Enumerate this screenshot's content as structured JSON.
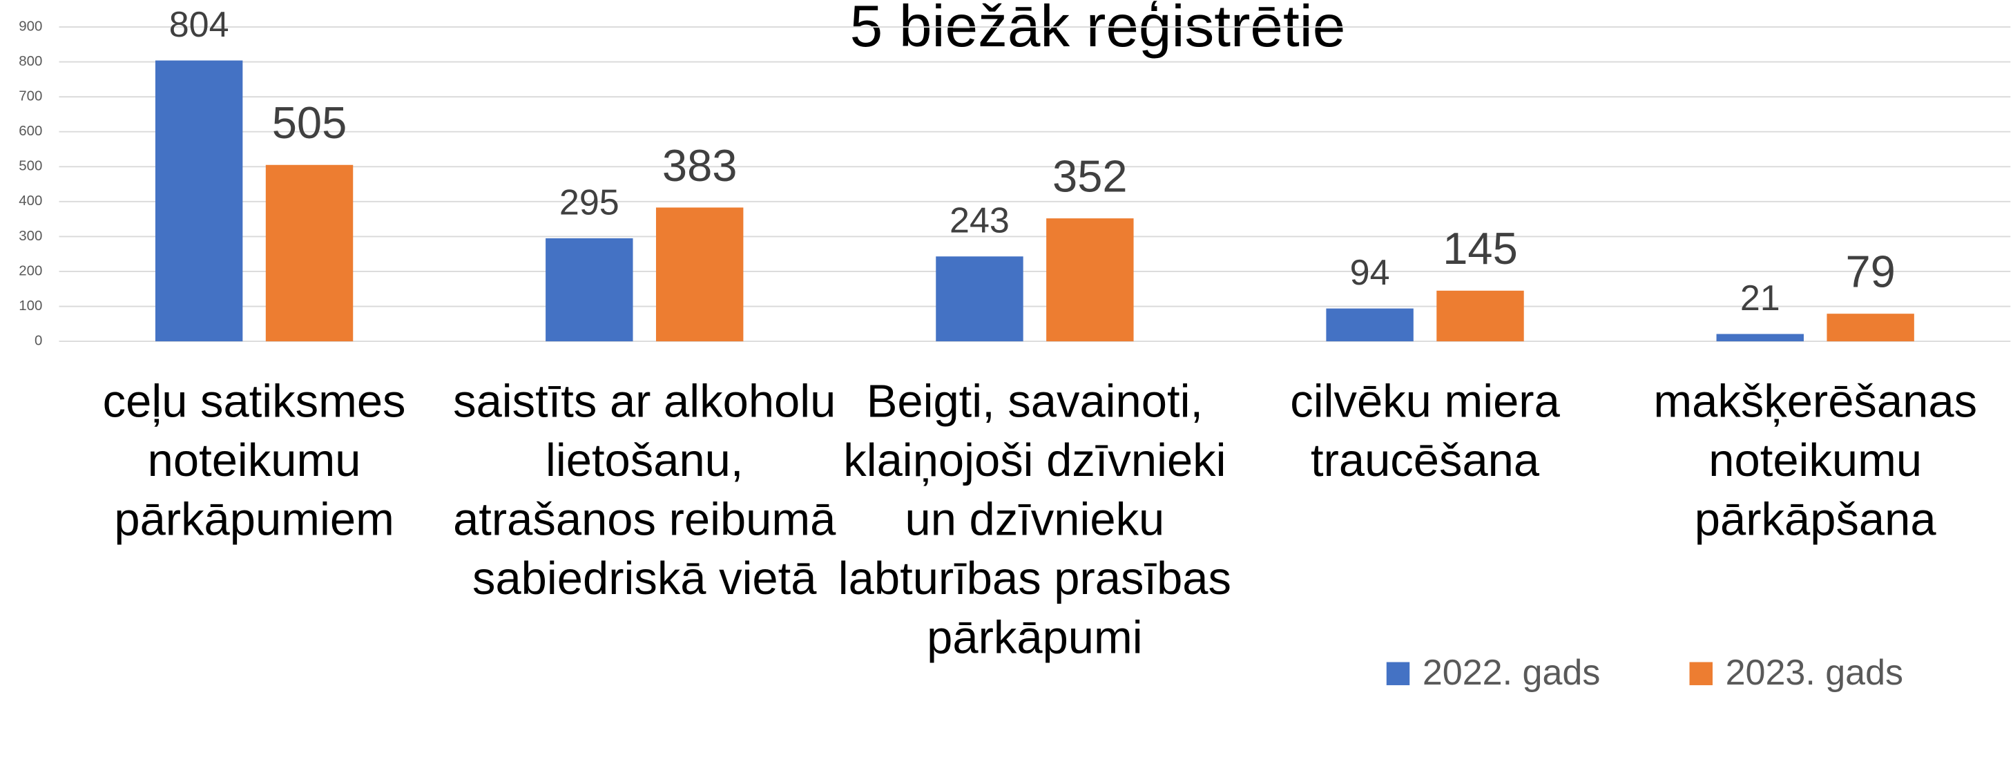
{
  "chart_data": {
    "type": "bar",
    "title": "5 biežāk reģistrētie",
    "categories": [
      "ceļu satiksmes noteikumu pārkāpumiem",
      "saistīts ar alkoholu lietošanu, atrašanos reibumā sabiedriskā vietā",
      "Beigti, savainoti, klaiņojoši dzīvnieki un dzīvnieku labturības prasības pārkāpumi",
      "cilvēku miera traucēšana",
      "makšķerēšanas noteikumu pārkāpšana"
    ],
    "series": [
      {
        "name": "2022. gads",
        "color": "#4472c4",
        "values": [
          804,
          295,
          243,
          94,
          21
        ]
      },
      {
        "name": "2023. gads",
        "color": "#ed7d31",
        "values": [
          505,
          383,
          352,
          145,
          79
        ]
      }
    ],
    "ylim": [
      0,
      900
    ],
    "yticks": [
      0,
      100,
      200,
      300,
      400,
      500,
      600,
      700,
      800,
      900
    ],
    "grid": true,
    "legend": "bottom-right"
  }
}
